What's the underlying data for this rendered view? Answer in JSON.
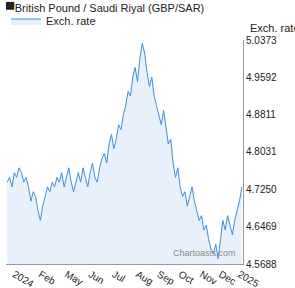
{
  "chart_data": {
    "type": "line",
    "title": "British Pound / Saudi Riyal (GBP/SAR)",
    "y_label": "Exch. rate",
    "annotations": [
      "Chartoasis.com"
    ],
    "categories": [
      null,
      null,
      null,
      "2024",
      null,
      null,
      null,
      null,
      null,
      null,
      null,
      null,
      null,
      null,
      "Feb",
      null,
      null,
      null,
      null,
      null,
      null,
      null,
      null,
      null,
      null,
      "May",
      null,
      null,
      null,
      null,
      null,
      null,
      null,
      null,
      null,
      "Jun",
      null,
      null,
      null,
      null,
      null,
      null,
      null,
      null,
      null,
      "Jul",
      null,
      null,
      null,
      null,
      null,
      null,
      null,
      null,
      null,
      "Aug",
      null,
      null,
      null,
      null,
      null,
      null,
      null,
      null,
      "Sep",
      null,
      null,
      null,
      null,
      null,
      null,
      null,
      null,
      "Oct",
      null,
      null,
      null,
      null,
      null,
      null,
      null,
      null,
      "Nov",
      null,
      null,
      null,
      null,
      null,
      null,
      null,
      "Dec",
      null,
      null,
      null,
      null,
      null,
      null,
      null,
      "2025",
      null
    ],
    "series": [
      {
        "name": "Exch. rate",
        "color": "#3f8fdc",
        "values": [
          4.74,
          4.75,
          4.73,
          4.76,
          4.75,
          4.77,
          4.76,
          4.74,
          4.75,
          4.73,
          4.7,
          4.72,
          4.71,
          4.68,
          4.66,
          4.69,
          4.71,
          4.73,
          4.72,
          4.74,
          4.73,
          4.75,
          4.74,
          4.76,
          4.73,
          4.75,
          4.77,
          4.74,
          4.72,
          4.74,
          4.76,
          4.74,
          4.77,
          4.75,
          4.73,
          4.76,
          4.78,
          4.75,
          4.74,
          4.77,
          4.79,
          4.8,
          4.78,
          4.82,
          4.84,
          4.81,
          4.83,
          4.86,
          4.85,
          4.88,
          4.9,
          4.93,
          4.92,
          4.96,
          4.98,
          4.95,
          5.0,
          5.03,
          5.01,
          4.97,
          4.94,
          4.96,
          4.92,
          4.9,
          4.88,
          4.86,
          4.89,
          4.85,
          4.82,
          4.83,
          4.78,
          4.75,
          4.77,
          4.73,
          4.71,
          4.72,
          4.69,
          4.71,
          4.73,
          4.7,
          4.68,
          4.66,
          4.67,
          4.64,
          4.65,
          4.62,
          4.6,
          4.59,
          4.61,
          4.58,
          4.62,
          4.66,
          4.64,
          4.67,
          4.65,
          4.63,
          4.66,
          4.68,
          4.7,
          4.73
        ]
      }
    ],
    "ylim": [
      4.5688,
      5.0373
    ],
    "yticks": [
      4.5688,
      4.6469,
      {
        "value": 4.725,
        "label": "4.7250"
      },
      4.8031,
      4.8811,
      4.9592,
      5.0373
    ],
    "grid": false,
    "legend": "top left"
  }
}
